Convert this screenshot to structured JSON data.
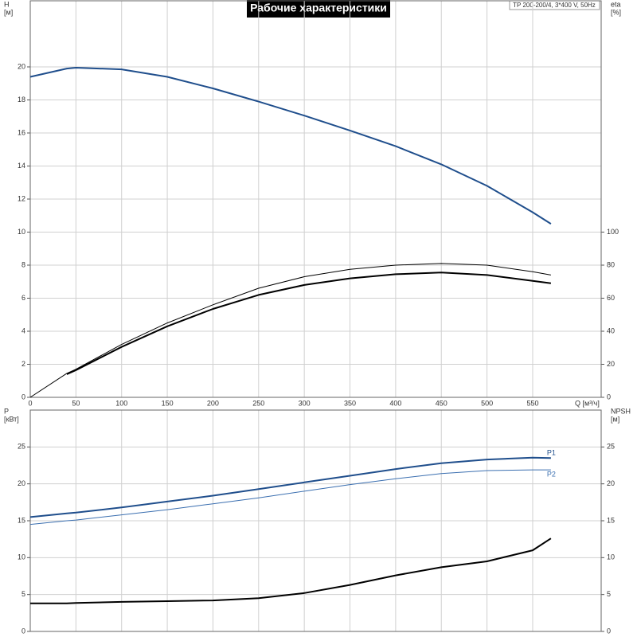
{
  "chart_data": [
    {
      "type": "line",
      "title": "Рабочие характеристики",
      "annotation": "TP 200-200/4, 3*400 V, 50Hz",
      "xlabel": "Q [м³/ч]",
      "ylabel": "H",
      "ylabel_unit": "[м]",
      "y2label": "eta",
      "y2label_unit": "[%]",
      "x": [
        0,
        40,
        50,
        100,
        150,
        200,
        250,
        300,
        350,
        400,
        450,
        500,
        550,
        570
      ],
      "xlim": [
        0,
        625
      ],
      "xticks": [
        0,
        50,
        100,
        150,
        200,
        250,
        300,
        350,
        400,
        450,
        500,
        550
      ],
      "show_xtick_labels": true,
      "ylim": [
        0,
        24
      ],
      "yticks": [
        0,
        2,
        4,
        6,
        8,
        10,
        12,
        14,
        16,
        18,
        20
      ],
      "y2lim": [
        0,
        240
      ],
      "y2ticks": [
        0,
        20,
        40,
        60,
        80,
        100
      ],
      "grid": true,
      "series": [
        {
          "color": "#1f4e8c",
          "width": 2,
          "values": [
            19.4,
            19.9,
            19.95,
            19.85,
            19.4,
            18.7,
            17.9,
            17.05,
            16.15,
            15.2,
            14.1,
            12.8,
            11.2,
            10.5
          ]
        },
        {
          "color": "#000000",
          "width": 1,
          "axis": "y2",
          "values": [
            0,
            14.5,
            17,
            32,
            45,
            56,
            66,
            73,
            77.5,
            80,
            81,
            80,
            76,
            74
          ]
        },
        {
          "color": "#000000",
          "width": 2,
          "axis": "y2",
          "values": [
            null,
            14,
            16.5,
            30.5,
            43,
            53.5,
            62,
            68,
            72,
            74.5,
            75.5,
            74,
            70.5,
            69
          ]
        }
      ]
    },
    {
      "type": "line",
      "ylabel": "P",
      "ylabel_unit": "[кВт]",
      "y2label": "NPSH",
      "y2label_unit": "[м]",
      "x": [
        0,
        40,
        50,
        100,
        150,
        200,
        250,
        300,
        350,
        400,
        450,
        500,
        550,
        570
      ],
      "xlim": [
        0,
        625
      ],
      "xticks": [
        0,
        50,
        100,
        150,
        200,
        250,
        300,
        350,
        400,
        450,
        500,
        550
      ],
      "show_xtick_labels": false,
      "ylim": [
        0,
        30
      ],
      "yticks": [
        0,
        5,
        10,
        15,
        20,
        25
      ],
      "y2lim": [
        0,
        30
      ],
      "y2ticks": [
        0,
        5,
        10,
        15,
        20,
        25
      ],
      "grid": true,
      "series": [
        {
          "name": "P1",
          "color": "#1f4e8c",
          "width": 2,
          "values": [
            15.5,
            16.0,
            16.1,
            16.8,
            17.6,
            18.4,
            19.3,
            20.2,
            21.1,
            22.0,
            22.8,
            23.3,
            23.55,
            23.5
          ]
        },
        {
          "name": "P2",
          "color": "#3b6fb0",
          "width": 1,
          "values": [
            14.5,
            15.0,
            15.1,
            15.8,
            16.5,
            17.3,
            18.1,
            19.0,
            19.9,
            20.7,
            21.4,
            21.8,
            21.9,
            21.9
          ]
        },
        {
          "color": "#000000",
          "width": 2,
          "axis": "y2",
          "values": [
            3.8,
            3.8,
            3.85,
            4.0,
            4.1,
            4.2,
            4.5,
            5.2,
            6.3,
            7.6,
            8.7,
            9.5,
            11.0,
            12.6
          ]
        }
      ]
    }
  ]
}
